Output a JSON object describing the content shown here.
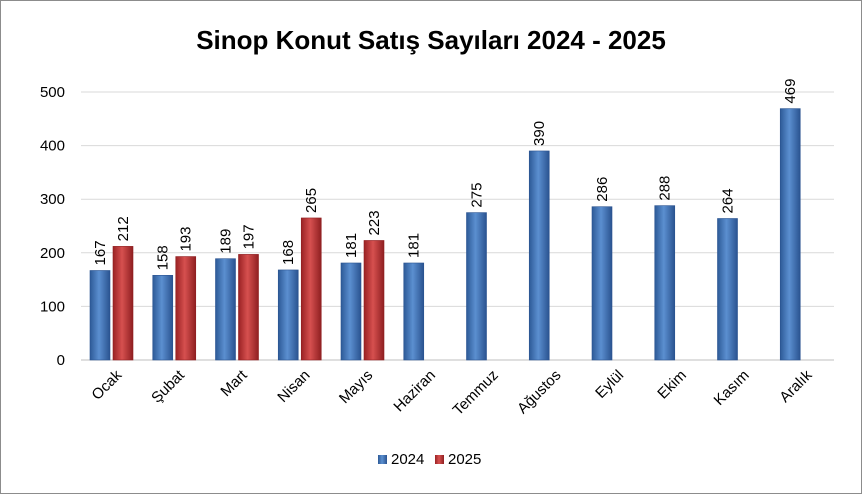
{
  "chart_data": {
    "type": "bar",
    "title": "Sinop Konut Satış Sayıları  2024 - 2025",
    "categories": [
      "Ocak",
      "Şubat",
      "Mart",
      "Nisan",
      "Mayıs",
      "Haziran",
      "Temmuz",
      "Ağustos",
      "Eylül",
      "Ekim",
      "Kasım",
      "Aralık"
    ],
    "series": [
      {
        "name": "2024",
        "color": "#4a7ebf",
        "values": [
          167,
          158,
          189,
          168,
          181,
          181,
          275,
          390,
          286,
          288,
          264,
          469
        ]
      },
      {
        "name": "2025",
        "color": "#c0393b",
        "values": [
          212,
          193,
          197,
          265,
          223,
          null,
          null,
          null,
          null,
          null,
          null,
          null
        ]
      }
    ],
    "yticks": [
      0,
      100,
      200,
      300,
      400,
      500
    ],
    "ylim": [
      0,
      500
    ],
    "grid": true,
    "legend_position": "bottom"
  }
}
